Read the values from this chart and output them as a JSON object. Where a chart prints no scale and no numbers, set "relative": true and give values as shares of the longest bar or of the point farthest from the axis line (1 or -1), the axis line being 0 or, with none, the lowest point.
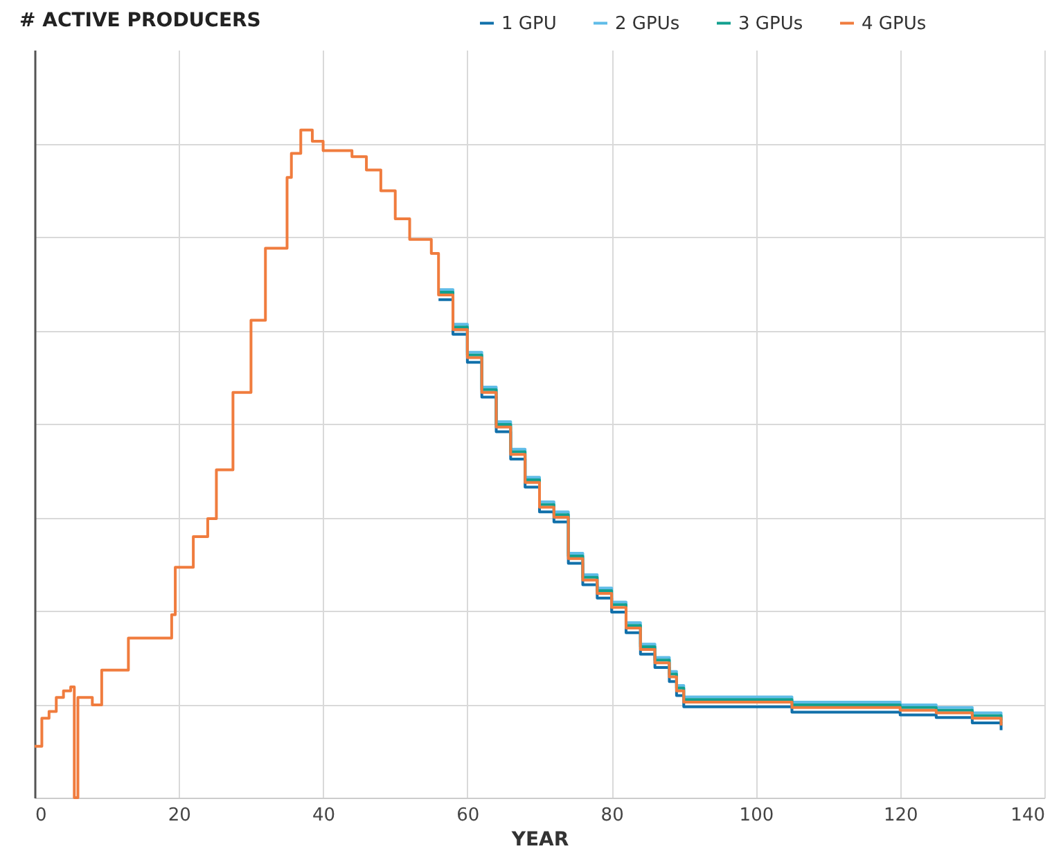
{
  "chart_data": {
    "type": "step",
    "title": "# ACTIVE PRODUCERS",
    "xlabel": "YEAR",
    "relative": true,
    "xlim": [
      0,
      140
    ],
    "xticks": [
      0,
      20,
      40,
      60,
      80,
      100,
      120,
      140
    ],
    "grid": true,
    "legend": "top right",
    "x": [
      0,
      1,
      2,
      3,
      4,
      5,
      5.5,
      6,
      8,
      9.3,
      13,
      19,
      19.5,
      22,
      24,
      25.2,
      27.5,
      30,
      32,
      35,
      35.6,
      36.9,
      38.5,
      40,
      44,
      46,
      48,
      50,
      52,
      55,
      56,
      58,
      60,
      62,
      64,
      66,
      68,
      70,
      72,
      74,
      76,
      78,
      80,
      82,
      84,
      86,
      88,
      89,
      90,
      100,
      105,
      120,
      125,
      130,
      134
    ],
    "series": [
      {
        "name": "1 GPU",
        "color": "#1170aa",
        "values": [
          null,
          null,
          null,
          null,
          null,
          null,
          null,
          null,
          null,
          null,
          null,
          null,
          null,
          null,
          null,
          null,
          null,
          null,
          null,
          null,
          null,
          null,
          null,
          null,
          null,
          null,
          null,
          null,
          null,
          null,
          0.746,
          0.694,
          0.652,
          0.6,
          0.548,
          0.507,
          0.465,
          0.428,
          0.413,
          0.351,
          0.319,
          0.299,
          0.278,
          0.247,
          0.215,
          0.195,
          0.174,
          0.153,
          0.136,
          0.136,
          0.128,
          0.124,
          0.12,
          0.112,
          0.101
        ]
      },
      {
        "name": "2 GPUs",
        "color": "#5fbce8",
        "values": [
          null,
          null,
          null,
          null,
          null,
          null,
          null,
          null,
          null,
          null,
          null,
          null,
          null,
          null,
          null,
          null,
          null,
          null,
          null,
          null,
          null,
          null,
          null,
          null,
          null,
          null,
          null,
          null,
          null,
          null,
          0.761,
          0.709,
          0.667,
          0.615,
          0.563,
          0.522,
          0.48,
          0.443,
          0.428,
          0.366,
          0.334,
          0.314,
          0.293,
          0.262,
          0.23,
          0.21,
          0.189,
          0.168,
          0.151,
          0.151,
          0.143,
          0.139,
          0.135,
          0.127,
          0.116
        ]
      },
      {
        "name": "3 GPUs",
        "color": "#12a08f",
        "values": [
          null,
          null,
          null,
          null,
          null,
          null,
          null,
          null,
          null,
          null,
          null,
          null,
          null,
          null,
          null,
          null,
          null,
          null,
          null,
          null,
          null,
          null,
          null,
          null,
          null,
          null,
          null,
          null,
          null,
          null,
          0.757,
          0.705,
          0.663,
          0.611,
          0.559,
          0.518,
          0.476,
          0.439,
          0.424,
          0.362,
          0.33,
          0.31,
          0.289,
          0.258,
          0.226,
          0.206,
          0.185,
          0.164,
          0.147,
          0.147,
          0.139,
          0.135,
          0.131,
          0.123,
          0.112
        ]
      },
      {
        "name": "4 GPUs",
        "color": "#f07c3e",
        "values": [
          0.077,
          0.119,
          0.129,
          0.15,
          0.16,
          0.166,
          0,
          0.15,
          0.139,
          0.191,
          0.239,
          0.274,
          0.345,
          0.391,
          0.418,
          0.491,
          0.607,
          0.715,
          0.823,
          0.929,
          0.965,
          1,
          0.983,
          0.969,
          0.96,
          0.94,
          0.909,
          0.867,
          0.836,
          0.815,
          0.753,
          0.701,
          0.659,
          0.607,
          0.555,
          0.514,
          0.472,
          0.435,
          0.42,
          0.358,
          0.326,
          0.306,
          0.285,
          0.254,
          0.222,
          0.202,
          0.181,
          0.16,
          0.143,
          0.143,
          0.135,
          0.131,
          0.127,
          0.119,
          0.108
        ]
      }
    ]
  }
}
